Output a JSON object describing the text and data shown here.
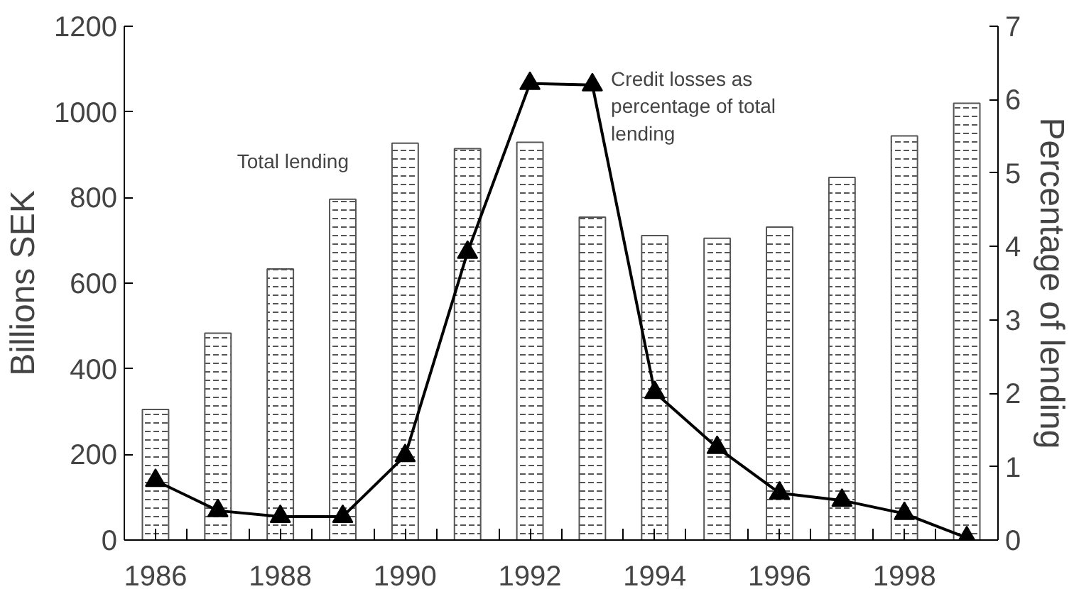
{
  "chart_data": {
    "type": "bar",
    "x": [
      1986,
      1987,
      1988,
      1989,
      1990,
      1991,
      1992,
      1993,
      1994,
      1995,
      1996,
      1997,
      1998,
      1999
    ],
    "series": [
      {
        "color": "#555555",
        "values": [
          305,
          483,
          633,
          796,
          927,
          914,
          929,
          754,
          711,
          705,
          731,
          847,
          944,
          1020
        ]
      },
      {
        "type": "line",
        "axis": "y2",
        "color": "#000000",
        "marker": "triangle",
        "values": [
          0.81,
          0.4,
          0.32,
          0.32,
          1.15,
          3.92,
          6.22,
          6.2,
          2.01,
          1.26,
          0.64,
          0.54,
          0.36,
          0.03
        ]
      }
    ],
    "ylabel": "Billions SEK",
    "y2label": "Percentage of lending",
    "xlim": [
      1985.5,
      1999.5
    ],
    "xticks": [
      1986,
      {
        "value": 1986.5,
        "label": null
      },
      {
        "value": 1987.5,
        "label": null
      },
      1988,
      {
        "value": 1988.5,
        "label": null
      },
      {
        "value": 1989.5,
        "label": null
      },
      1990,
      {
        "value": 1990.5,
        "label": null
      },
      {
        "value": 1991.5,
        "label": null
      },
      1992,
      {
        "value": 1992.5,
        "label": null
      },
      {
        "value": 1993.5,
        "label": null
      },
      1994,
      {
        "value": 1994.5,
        "label": null
      },
      {
        "value": 1995.5,
        "label": null
      },
      1996,
      {
        "value": 1996.5,
        "label": null
      },
      {
        "value": 1997.5,
        "label": null
      },
      1998,
      {
        "value": 1998.5,
        "label": null
      }
    ],
    "ylim": [
      0,
      1200
    ],
    "yticks": [
      0,
      200,
      400,
      600,
      800,
      1000,
      1200
    ],
    "y2lim": [
      0,
      7
    ],
    "y2ticks": [
      0,
      1,
      2,
      3,
      4,
      5,
      6,
      7
    ],
    "annotations": [
      "Total lending",
      "Credit losses as\npercentage of total\nlending"
    ],
    "grid": false
  }
}
